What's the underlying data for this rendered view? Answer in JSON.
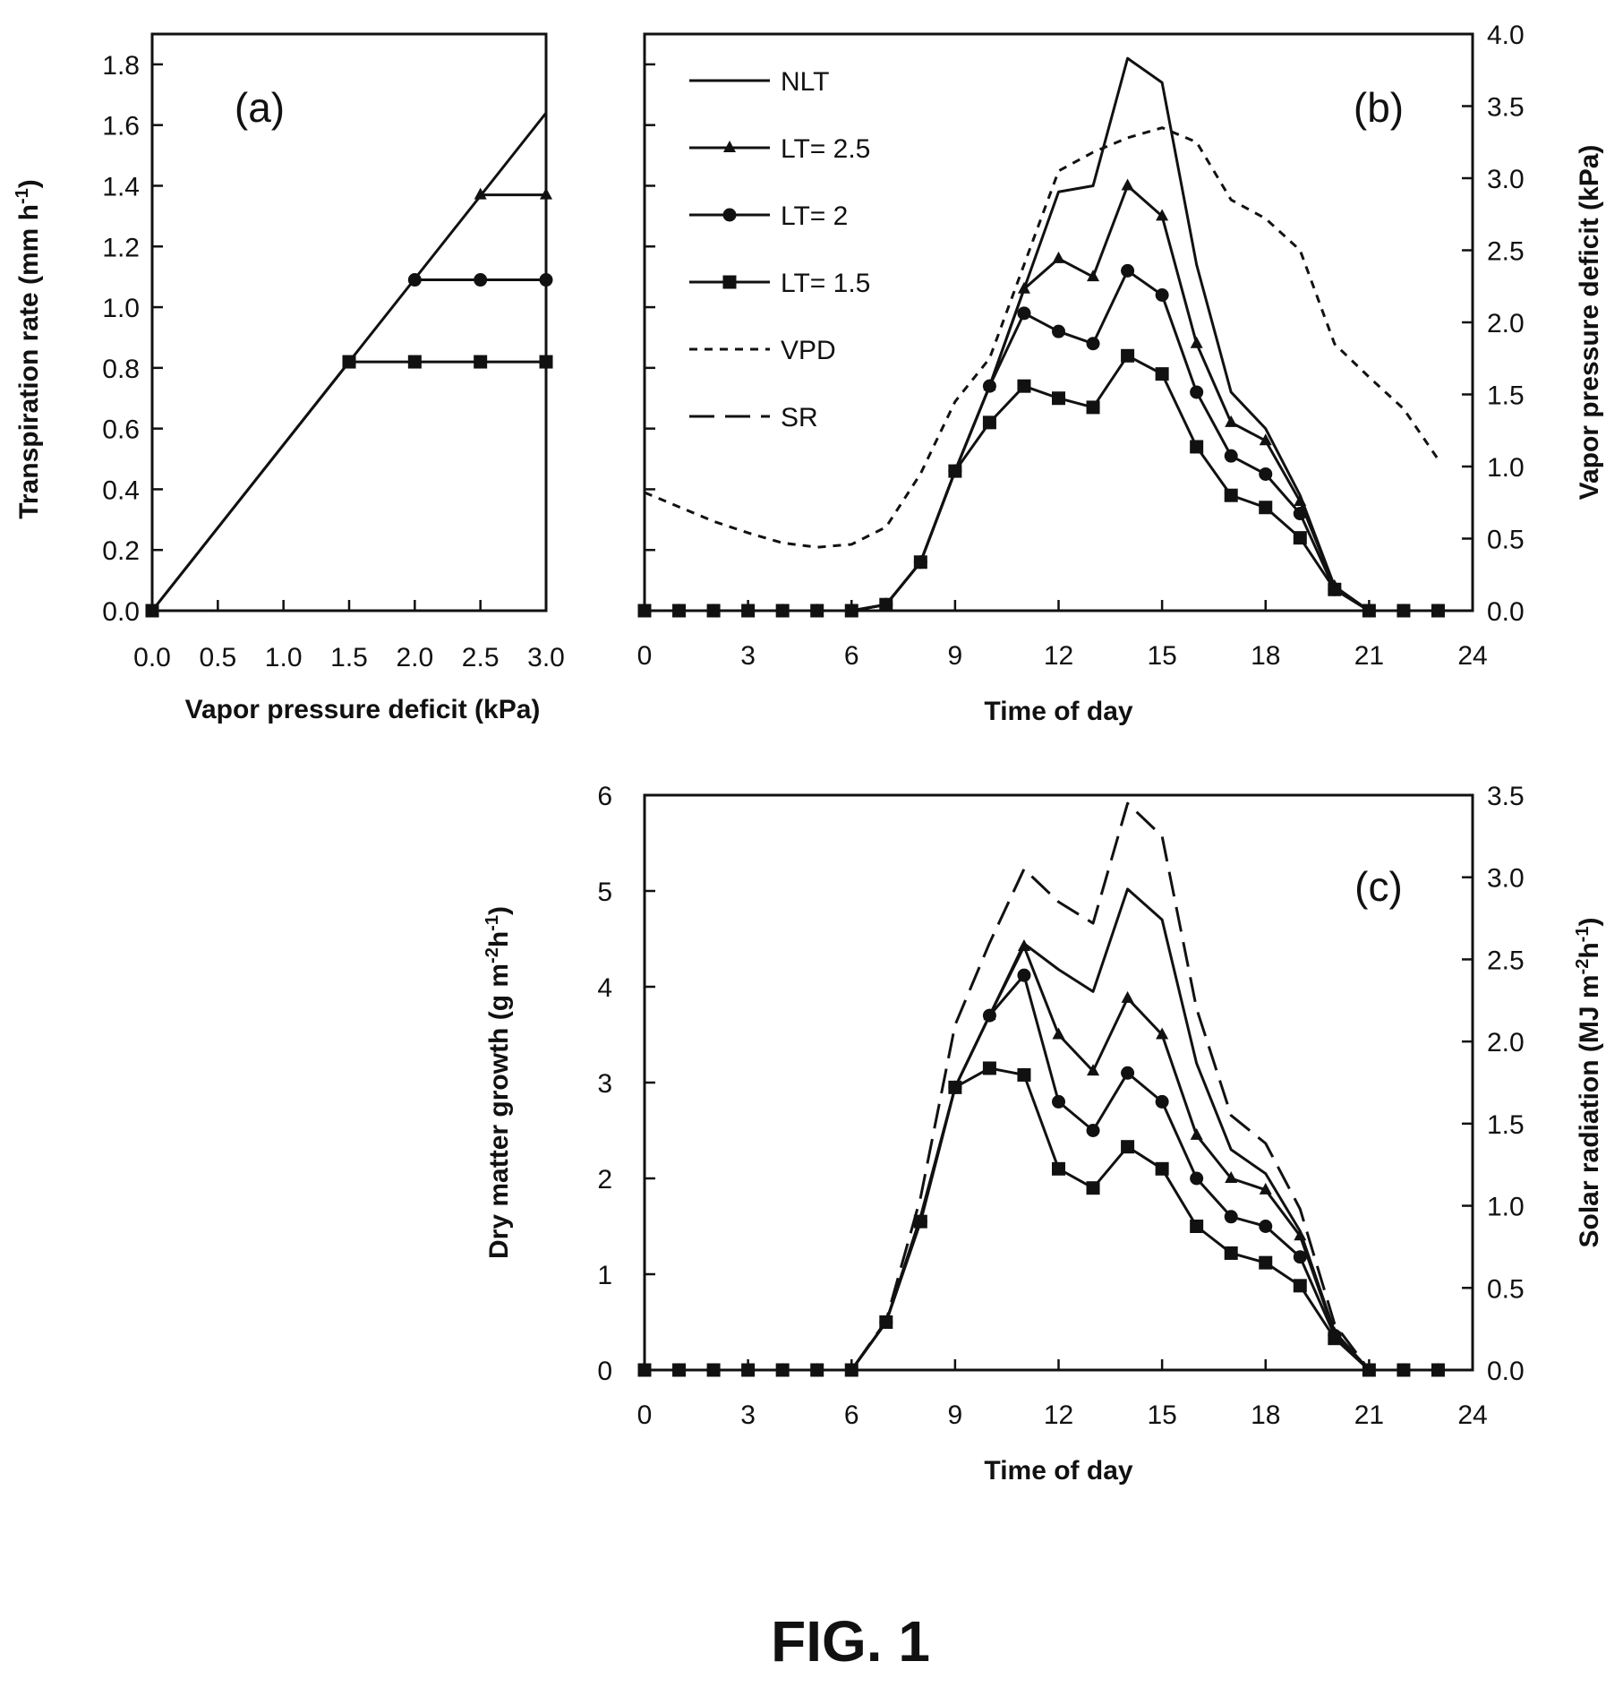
{
  "figure_label": "FIG. 1",
  "chart_data": [
    {
      "panel": "(a)",
      "type": "line",
      "xlabel": "Vapor pressure deficit (kPa)",
      "ylabel": "Transpiration rate (mm h",
      "ylabel_sup": "-1",
      "ylabel_end": ")",
      "xlim": [
        0,
        3
      ],
      "ylim": [
        0,
        1.9
      ],
      "xticks": [
        "0.0",
        "0.5",
        "1.0",
        "1.5",
        "2.0",
        "2.5",
        "3.0"
      ],
      "yticks": [
        "0.0",
        "0.2",
        "0.4",
        "0.6",
        "0.8",
        "1.0",
        "1.2",
        "1.4",
        "1.6",
        "1.8"
      ],
      "series": [
        {
          "key": "NLT",
          "marker": "none",
          "dash": "solid",
          "x": [
            0,
            3
          ],
          "y": [
            0,
            1.64
          ]
        },
        {
          "key": "LT25",
          "marker": "triangle",
          "dash": "solid",
          "x": [
            2.5,
            3
          ],
          "y": [
            1.37,
            1.37
          ]
        },
        {
          "key": "LT2",
          "marker": "circle",
          "dash": "solid",
          "x": [
            2,
            2.5,
            3
          ],
          "y": [
            1.09,
            1.09,
            1.09
          ]
        },
        {
          "key": "LT15",
          "marker": "square",
          "dash": "solid",
          "x": [
            0,
            1.5,
            2,
            2.5,
            3
          ],
          "y": [
            0,
            0.82,
            0.82,
            0.82,
            0.82
          ]
        }
      ]
    },
    {
      "panel": "(b)",
      "type": "line",
      "xlabel": "Time of day",
      "ylabel_right": "Vapor pressure deficit (kPa)",
      "xlim": [
        0,
        24
      ],
      "ylim": [
        0,
        1.9
      ],
      "ylim_right": [
        0,
        4.0
      ],
      "xticks": [
        "0",
        "3",
        "6",
        "9",
        "12",
        "15",
        "18",
        "21",
        "24"
      ],
      "yticks_right": [
        "0.0",
        "0.5",
        "1.0",
        "1.5",
        "2.0",
        "2.5",
        "3.0",
        "3.5",
        "4.0"
      ],
      "legend": [
        {
          "label": "NLT",
          "marker": "none",
          "dash": "solid"
        },
        {
          "label": "LT= 2.5",
          "marker": "triangle",
          "dash": "solid"
        },
        {
          "label": "LT= 2",
          "marker": "circle",
          "dash": "solid"
        },
        {
          "label": "LT= 1.5",
          "marker": "square",
          "dash": "solid"
        },
        {
          "label": "VPD",
          "marker": "none",
          "dash": "short"
        },
        {
          "label": "SR",
          "marker": "none",
          "dash": "long"
        }
      ],
      "x": [
        0,
        1,
        2,
        3,
        4,
        5,
        6,
        7,
        8,
        9,
        10,
        11,
        12,
        13,
        14,
        15,
        16,
        17,
        18,
        19,
        20,
        21,
        22,
        23
      ],
      "series": [
        {
          "key": "NLT",
          "marker": "none",
          "dash": "solid",
          "axis": "left",
          "y": [
            0,
            0,
            0,
            0,
            0,
            0,
            0,
            0.02,
            0.16,
            0.46,
            0.74,
            1.06,
            1.38,
            1.4,
            1.82,
            1.74,
            1.14,
            0.72,
            0.6,
            0.38,
            0.08,
            0,
            0,
            0
          ]
        },
        {
          "key": "LT25",
          "marker": "triangle",
          "dash": "solid",
          "axis": "left",
          "y": [
            0,
            0,
            0,
            0,
            0,
            0,
            0,
            0.02,
            0.16,
            0.46,
            0.74,
            1.06,
            1.16,
            1.1,
            1.4,
            1.3,
            0.88,
            0.62,
            0.56,
            0.36,
            0.08,
            0,
            0,
            0
          ]
        },
        {
          "key": "LT2",
          "marker": "circle",
          "dash": "solid",
          "axis": "left",
          "y": [
            0,
            0,
            0,
            0,
            0,
            0,
            0,
            0.02,
            0.16,
            0.46,
            0.74,
            0.98,
            0.92,
            0.88,
            1.12,
            1.04,
            0.72,
            0.51,
            0.45,
            0.32,
            0.07,
            0,
            0,
            0
          ]
        },
        {
          "key": "LT15",
          "marker": "square",
          "dash": "solid",
          "axis": "left",
          "y": [
            0,
            0,
            0,
            0,
            0,
            0,
            0,
            0.02,
            0.16,
            0.46,
            0.62,
            0.74,
            0.7,
            0.67,
            0.84,
            0.78,
            0.54,
            0.38,
            0.34,
            0.24,
            0.07,
            0,
            0,
            0
          ]
        },
        {
          "key": "VPD",
          "marker": "none",
          "dash": "short",
          "axis": "right",
          "y": [
            0.82,
            0.72,
            0.62,
            0.54,
            0.47,
            0.44,
            0.46,
            0.58,
            0.95,
            1.45,
            1.75,
            2.4,
            3.05,
            3.18,
            3.28,
            3.35,
            3.25,
            2.85,
            2.72,
            2.5,
            1.85,
            1.62,
            1.4,
            1.05
          ]
        }
      ]
    },
    {
      "panel": "(c)",
      "type": "line",
      "xlabel": "Time of day",
      "ylabel": "Dry matter growth (g m",
      "ylabel_sup": "-2",
      "ylabel_mid": "h",
      "ylabel_sup2": "-1",
      "ylabel_end": ")",
      "ylabel_right": "Solar radiation (MJ m",
      "ylabel_right_sup": "-2",
      "ylabel_right_mid": "h",
      "ylabel_right_sup2": "-1",
      "ylabel_right_end": ")",
      "xlim": [
        0,
        24
      ],
      "ylim": [
        0,
        6
      ],
      "ylim_right": [
        0,
        3.5
      ],
      "xticks": [
        "0",
        "3",
        "6",
        "9",
        "12",
        "15",
        "18",
        "21",
        "24"
      ],
      "yticks": [
        "0",
        "1",
        "2",
        "3",
        "4",
        "5",
        "6"
      ],
      "yticks_right": [
        "0.0",
        "0.5",
        "1.0",
        "1.5",
        "2.0",
        "2.5",
        "3.0",
        "3.5"
      ],
      "x": [
        0,
        1,
        2,
        3,
        4,
        5,
        6,
        7,
        8,
        9,
        10,
        11,
        12,
        13,
        14,
        15,
        16,
        17,
        18,
        19,
        20,
        21,
        22,
        23
      ],
      "series": [
        {
          "key": "NLT",
          "marker": "none",
          "dash": "solid",
          "axis": "left",
          "y": [
            0,
            0,
            0,
            0,
            0,
            0,
            0,
            0.5,
            1.6,
            2.95,
            3.7,
            4.45,
            4.18,
            3.95,
            5.02,
            4.7,
            3.2,
            2.3,
            2.05,
            1.45,
            0.4,
            0,
            0,
            0
          ]
        },
        {
          "key": "LT25",
          "marker": "triangle",
          "dash": "solid",
          "axis": "left",
          "y": [
            0,
            0,
            0,
            0,
            0,
            0,
            0,
            0.5,
            1.55,
            2.95,
            3.7,
            4.42,
            3.5,
            3.12,
            3.88,
            3.5,
            2.45,
            2.0,
            1.88,
            1.4,
            0.38,
            0,
            0,
            0
          ]
        },
        {
          "key": "LT2",
          "marker": "circle",
          "dash": "solid",
          "axis": "left",
          "y": [
            0,
            0,
            0,
            0,
            0,
            0,
            0,
            0.5,
            1.55,
            2.95,
            3.7,
            4.12,
            2.8,
            2.5,
            3.1,
            2.8,
            2.0,
            1.6,
            1.5,
            1.18,
            0.36,
            0,
            0,
            0
          ]
        },
        {
          "key": "LT15",
          "marker": "square",
          "dash": "solid",
          "axis": "left",
          "y": [
            0,
            0,
            0,
            0,
            0,
            0,
            0,
            0.5,
            1.55,
            2.95,
            3.15,
            3.08,
            2.1,
            1.9,
            2.33,
            2.1,
            1.5,
            1.22,
            1.12,
            0.88,
            0.33,
            0,
            0,
            0
          ]
        },
        {
          "key": "SR",
          "marker": "none",
          "dash": "long",
          "axis": "right",
          "y": [
            0,
            0,
            0,
            0,
            0,
            0,
            0,
            0.3,
            1.05,
            2.1,
            2.6,
            3.05,
            2.85,
            2.72,
            3.45,
            3.25,
            2.2,
            1.55,
            1.38,
            0.98,
            0.28,
            0,
            0,
            0
          ]
        }
      ]
    }
  ]
}
